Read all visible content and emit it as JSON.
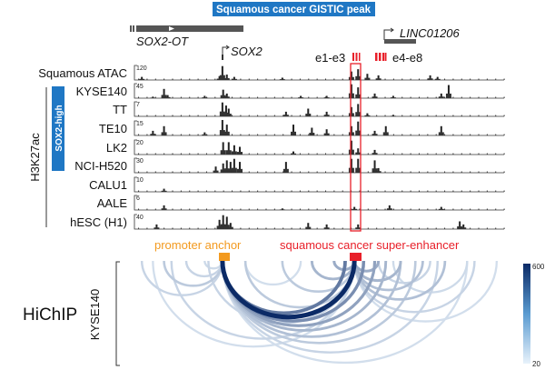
{
  "gistic_label": "Squamous cancer GISTIC peak",
  "genes": {
    "sox2ot": "SOX2-OT",
    "sox2": "SOX2",
    "linc": "LINC01206"
  },
  "enhancers": {
    "e1e3": "e1-e3",
    "e4e8": "e4-e8"
  },
  "group_label": "H3K27ac",
  "subgroup_label": "SOX2-high",
  "tracks": [
    {
      "name": "Squamous ATAC",
      "scale": "120",
      "peaks": [
        [
          2,
          0.2
        ],
        [
          23,
          0.25
        ],
        [
          23.8,
          0.9
        ],
        [
          25,
          0.35
        ],
        [
          27,
          0.2
        ],
        [
          40,
          0.15
        ],
        [
          58.7,
          0.55
        ],
        [
          60.5,
          0.7
        ],
        [
          63,
          0.4
        ],
        [
          66,
          0.3
        ],
        [
          80,
          0.3
        ],
        [
          82,
          0.2
        ]
      ]
    },
    {
      "name": "KYSE140",
      "scale": "45",
      "peaks": [
        [
          5,
          0.1
        ],
        [
          8,
          0.6
        ],
        [
          9,
          0.2
        ],
        [
          19,
          0.15
        ],
        [
          24,
          0.55
        ],
        [
          25,
          0.3
        ],
        [
          45,
          0.15
        ],
        [
          52,
          0.15
        ],
        [
          58.7,
          0.9
        ],
        [
          60.5,
          0.7
        ],
        [
          65,
          0.3
        ],
        [
          70,
          0.15
        ],
        [
          83,
          0.3
        ],
        [
          85,
          0.85
        ]
      ]
    },
    {
      "name": "TT",
      "scale": "7",
      "peaks": [
        [
          23.8,
          0.9
        ],
        [
          24.8,
          0.7
        ],
        [
          25.5,
          0.5
        ],
        [
          41,
          0.3
        ],
        [
          47,
          0.5
        ],
        [
          52,
          0.3
        ],
        [
          58.7,
          0.6
        ],
        [
          60.5,
          0.8
        ],
        [
          63,
          0.2
        ],
        [
          70,
          0.1
        ]
      ]
    },
    {
      "name": "TE10",
      "scale": "15",
      "peaks": [
        [
          5,
          0.3
        ],
        [
          8,
          0.6
        ],
        [
          19,
          0.2
        ],
        [
          23.8,
          1
        ],
        [
          25,
          0.7
        ],
        [
          43,
          0.7
        ],
        [
          48,
          0.5
        ],
        [
          52,
          0.4
        ],
        [
          58.7,
          0.6
        ],
        [
          60.5,
          0.9
        ],
        [
          65,
          0.3
        ],
        [
          68,
          0.6
        ],
        [
          83,
          0.6
        ]
      ]
    },
    {
      "name": "LK2",
      "scale": "20",
      "peaks": [
        [
          24,
          0.8
        ],
        [
          25.5,
          0.8
        ],
        [
          27,
          0.6
        ],
        [
          28.5,
          0.5
        ],
        [
          43,
          0.2
        ],
        [
          58.7,
          0.9
        ],
        [
          60.5,
          0.4
        ],
        [
          65,
          0.3
        ]
      ]
    },
    {
      "name": "NCI-H520",
      "scale": "30",
      "peaks": [
        [
          22,
          0.4
        ],
        [
          24,
          0.6
        ],
        [
          25,
          0.8
        ],
        [
          26,
          0.7
        ],
        [
          27,
          0.9
        ],
        [
          28.5,
          0.7
        ],
        [
          41,
          0.7
        ],
        [
          58.7,
          0.9
        ],
        [
          60.5,
          0.9
        ],
        [
          65,
          0.8
        ],
        [
          66,
          0.3
        ]
      ]
    },
    {
      "name": "CALU1",
      "scale": "10",
      "peaks": [
        [
          8,
          0.2
        ]
      ]
    },
    {
      "name": "AALE",
      "scale": "6",
      "peaks": [
        [
          8,
          0.3
        ],
        [
          40,
          0.1
        ],
        [
          59.5,
          0.2
        ],
        [
          69,
          0.3
        ],
        [
          83,
          0.2
        ]
      ]
    },
    {
      "name": "hESC (H1)",
      "scale": "40",
      "peaks": [
        [
          6,
          0.3
        ],
        [
          23,
          0.6
        ],
        [
          24,
          0.9
        ],
        [
          25,
          0.8
        ],
        [
          26,
          0.4
        ],
        [
          47,
          0.4
        ],
        [
          52,
          0.3
        ],
        [
          60.5,
          0.3
        ],
        [
          88,
          0.5
        ],
        [
          89,
          0.3
        ]
      ]
    }
  ],
  "promoter_label": "promoter anchor",
  "enhancer_label": "squamous cancer super-enhancer",
  "hichip_label": "HiChIP",
  "hichip_sample": "KYSE140",
  "colorbar": {
    "max": "600",
    "min": "20",
    "low_color": "#e8f2fb",
    "high_color": "#0b2a66"
  },
  "colors": {
    "gistic": "#1f77c4",
    "red": "#e8202a",
    "orange": "#f39a1f"
  },
  "arcs": [
    [
      23.8,
      59.5,
      1
    ],
    [
      23.8,
      57,
      0.6
    ],
    [
      23.8,
      62,
      0.5
    ],
    [
      23.8,
      65,
      0.4
    ],
    [
      23.8,
      68,
      0.3
    ],
    [
      23.8,
      72,
      0.25
    ],
    [
      23.8,
      76,
      0.2
    ],
    [
      23.8,
      82,
      0.15
    ],
    [
      23.8,
      90,
      0.1
    ],
    [
      59.5,
      66,
      0.35
    ],
    [
      59.5,
      72,
      0.3
    ],
    [
      59.5,
      78,
      0.25
    ],
    [
      59.5,
      84,
      0.25
    ],
    [
      59.5,
      92,
      0.15
    ],
    [
      59.5,
      98,
      0.1
    ],
    [
      2,
      23.8,
      0.15
    ],
    [
      8,
      23.8,
      0.2
    ],
    [
      14,
      23.8,
      0.15
    ],
    [
      19,
      23.8,
      0.12
    ],
    [
      10,
      59.5,
      0.15
    ],
    [
      30,
      59.5,
      0.2
    ],
    [
      40,
      59.5,
      0.2
    ],
    [
      48,
      59.5,
      0.3
    ],
    [
      54,
      59.5,
      0.35
    ],
    [
      20,
      59.5,
      0.15
    ],
    [
      5,
      59.5,
      0.1
    ],
    [
      66,
      80,
      0.15
    ],
    [
      70,
      90,
      0.12
    ],
    [
      30,
      45,
      0.1
    ]
  ]
}
